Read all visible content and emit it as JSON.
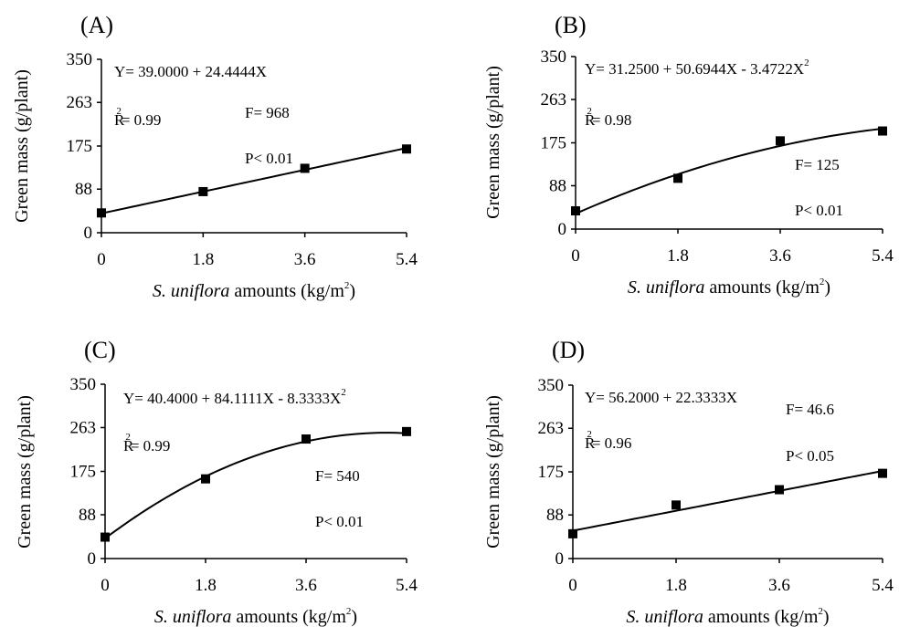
{
  "chart_data": [
    {
      "type": "scatter",
      "panel_label": "(A)",
      "x": [
        0,
        1.8,
        3.6,
        5.4
      ],
      "values": [
        40,
        83,
        130,
        169
      ],
      "fit": {
        "kind": "linear",
        "coefficients": [
          39.0,
          24.4444
        ]
      },
      "ylim": [
        0,
        350
      ],
      "yticks": [
        "0",
        "88",
        "175",
        "263",
        "350"
      ],
      "xticks": [
        "0",
        "1.8",
        "3.6",
        "5.4"
      ],
      "ylabel": "Green mass (g/plant)",
      "xlabel_italic": "S. uniflora",
      "xlabel_rest": " amounts (kg/m",
      "xlabel_sup": "2",
      "xlabel_close": ")",
      "equation": "Y= 39.0000 + 24.4444X",
      "equation_sup": "",
      "r2_prefix": "R",
      "r2_sup": "2",
      "r2_value": "= 0.99",
      "f_text": "F= 968",
      "p_text": "P< 0.01"
    },
    {
      "type": "scatter",
      "panel_label": "(B)",
      "x": [
        0,
        1.8,
        3.6,
        5.4
      ],
      "values": [
        37,
        103,
        179,
        199
      ],
      "fit": {
        "kind": "quadratic",
        "coefficients": [
          31.25,
          50.6944,
          -3.4722
        ]
      },
      "ylim": [
        0,
        350
      ],
      "yticks": [
        "0",
        "88",
        "175",
        "263",
        "350"
      ],
      "xticks": [
        "0",
        "1.8",
        "3.6",
        "5.4"
      ],
      "ylabel": "Green mass (g/plant)",
      "xlabel_italic": "S. uniflora",
      "xlabel_rest": " amounts (kg/m",
      "xlabel_sup": "2",
      "xlabel_close": ")",
      "equation": "Y= 31.2500 + 50.6944X - 3.4722X",
      "equation_sup": "2",
      "r2_prefix": "R",
      "r2_sup": "2",
      "r2_value": "= 0.98",
      "f_text": "F= 125",
      "p_text": "P< 0.01"
    },
    {
      "type": "scatter",
      "panel_label": "(C)",
      "x": [
        0,
        1.8,
        3.6,
        5.4
      ],
      "values": [
        43,
        160,
        240,
        255
      ],
      "fit": {
        "kind": "quadratic",
        "coefficients": [
          40.4,
          84.1111,
          -8.3333
        ]
      },
      "ylim": [
        0,
        350
      ],
      "yticks": [
        "0",
        "88",
        "175",
        "263",
        "350"
      ],
      "xticks": [
        "0",
        "1.8",
        "3.6",
        "5.4"
      ],
      "ylabel": "Green mass (g/plant)",
      "xlabel_italic": "S. uniflora",
      "xlabel_rest": " amounts (kg/m",
      "xlabel_sup": "2",
      "xlabel_close": ")",
      "equation": "Y= 40.4000 + 84.1111X - 8.3333X",
      "equation_sup": "2",
      "r2_prefix": "R",
      "r2_sup": "2",
      "r2_value": "= 0.99",
      "f_text": "F= 540",
      "p_text": "P< 0.01"
    },
    {
      "type": "scatter",
      "panel_label": "(D)",
      "x": [
        0,
        1.8,
        3.6,
        5.4
      ],
      "values": [
        50,
        108,
        139,
        172
      ],
      "fit": {
        "kind": "linear",
        "coefficients": [
          56.2,
          22.3333
        ]
      },
      "ylim": [
        0,
        350
      ],
      "yticks": [
        "0",
        "88",
        "175",
        "263",
        "350"
      ],
      "xticks": [
        "0",
        "1.8",
        "3.6",
        "5.4"
      ],
      "ylabel": "Green mass (g/plant)",
      "xlabel_italic": "S. uniflora",
      "xlabel_rest": " amounts (kg/m",
      "xlabel_sup": "2",
      "xlabel_close": ")",
      "equation": "Y= 56.2000 + 22.3333X",
      "equation_sup": "",
      "r2_prefix": "R",
      "r2_sup": "2",
      "r2_value": "= 0.96",
      "f_text": "F= 46.6",
      "p_text": "P< 0.05"
    }
  ]
}
